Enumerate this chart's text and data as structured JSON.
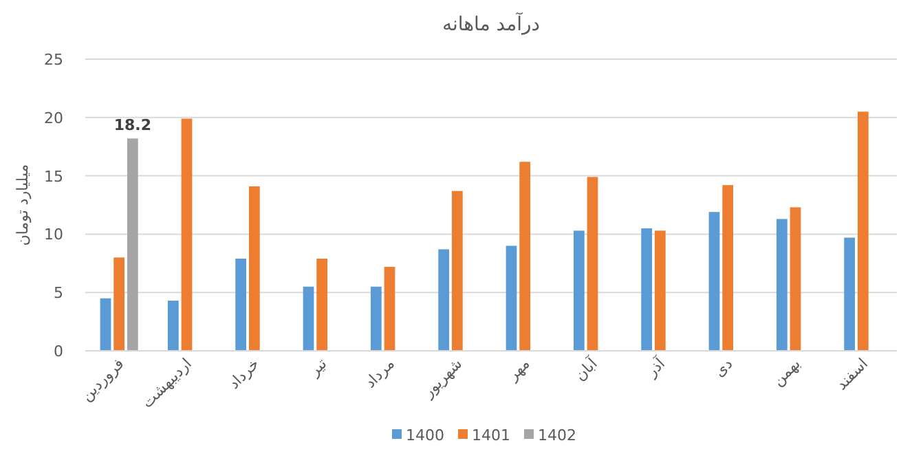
{
  "chart_data": {
    "type": "bar",
    "title": "درآمد ماهانه",
    "ylabel": "میلیارد تومان",
    "categories": [
      "فروردین",
      "اردیبهشت",
      "خرداد",
      "تیر",
      "مرداد",
      "شهریور",
      "مهر",
      "آبان",
      "آذر",
      "دی",
      "بهمن",
      "اسفند"
    ],
    "series": [
      {
        "name": "1400",
        "color": "#5b9bd5",
        "values": [
          4.5,
          4.3,
          7.9,
          5.5,
          5.5,
          8.7,
          9.0,
          10.3,
          10.5,
          11.9,
          11.3,
          9.7
        ]
      },
      {
        "name": "1401",
        "color": "#ed7d31",
        "values": [
          8.0,
          19.9,
          14.1,
          7.9,
          7.2,
          13.7,
          16.2,
          14.9,
          10.3,
          14.2,
          12.3,
          20.5
        ]
      },
      {
        "name": "1402",
        "color": "#a5a5a5",
        "values": [
          18.2,
          null,
          null,
          null,
          null,
          null,
          null,
          null,
          null,
          null,
          null,
          null
        ],
        "value_labels": [
          "18.2",
          null,
          null,
          null,
          null,
          null,
          null,
          null,
          null,
          null,
          null,
          null
        ]
      }
    ],
    "ylim": [
      0,
      25
    ],
    "yticks": [
      0,
      5,
      10,
      15,
      20,
      25
    ],
    "grid": "y",
    "legend": "bottom"
  }
}
